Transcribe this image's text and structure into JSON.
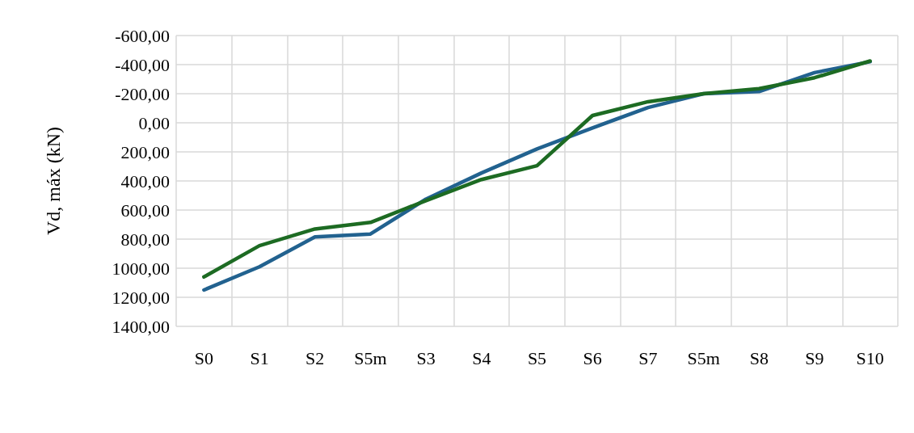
{
  "chart_data": {
    "type": "line",
    "ylabel": "Vd, máx (kN)",
    "categories": [
      "S0",
      "S1",
      "S2",
      "S5m",
      "S3",
      "S4",
      "S5",
      "S6",
      "S7",
      "S5m",
      "S8",
      "S9",
      "S10"
    ],
    "series": [
      {
        "color": "#22628f",
        "values": [
          1150,
          990,
          785,
          765,
          525,
          345,
          180,
          35,
          -105,
          -200,
          -215,
          -345,
          -420
        ]
      },
      {
        "color": "#1d6b23",
        "values": [
          1060,
          845,
          730,
          685,
          535,
          390,
          295,
          -50,
          -145,
          -200,
          -235,
          -310,
          -425
        ]
      }
    ],
    "ylim": [
      1400,
      -600
    ],
    "yticks": [
      {
        "value": -600,
        "label": "-600,00"
      },
      {
        "value": -400,
        "label": "-400,00"
      },
      {
        "value": -200,
        "label": "-200,00"
      },
      {
        "value": 0,
        "label": "0,00"
      },
      {
        "value": 200,
        "label": "200,00"
      },
      {
        "value": 400,
        "label": "400,00"
      },
      {
        "value": 600,
        "label": "600,00"
      },
      {
        "value": 800,
        "label": "800,00"
      },
      {
        "value": 1000,
        "label": "1000,00"
      },
      {
        "value": 1200,
        "label": "1200,00"
      },
      {
        "value": 1400,
        "label": "1400,00"
      }
    ],
    "grid": true,
    "marker": "none",
    "line_style": "solid"
  }
}
